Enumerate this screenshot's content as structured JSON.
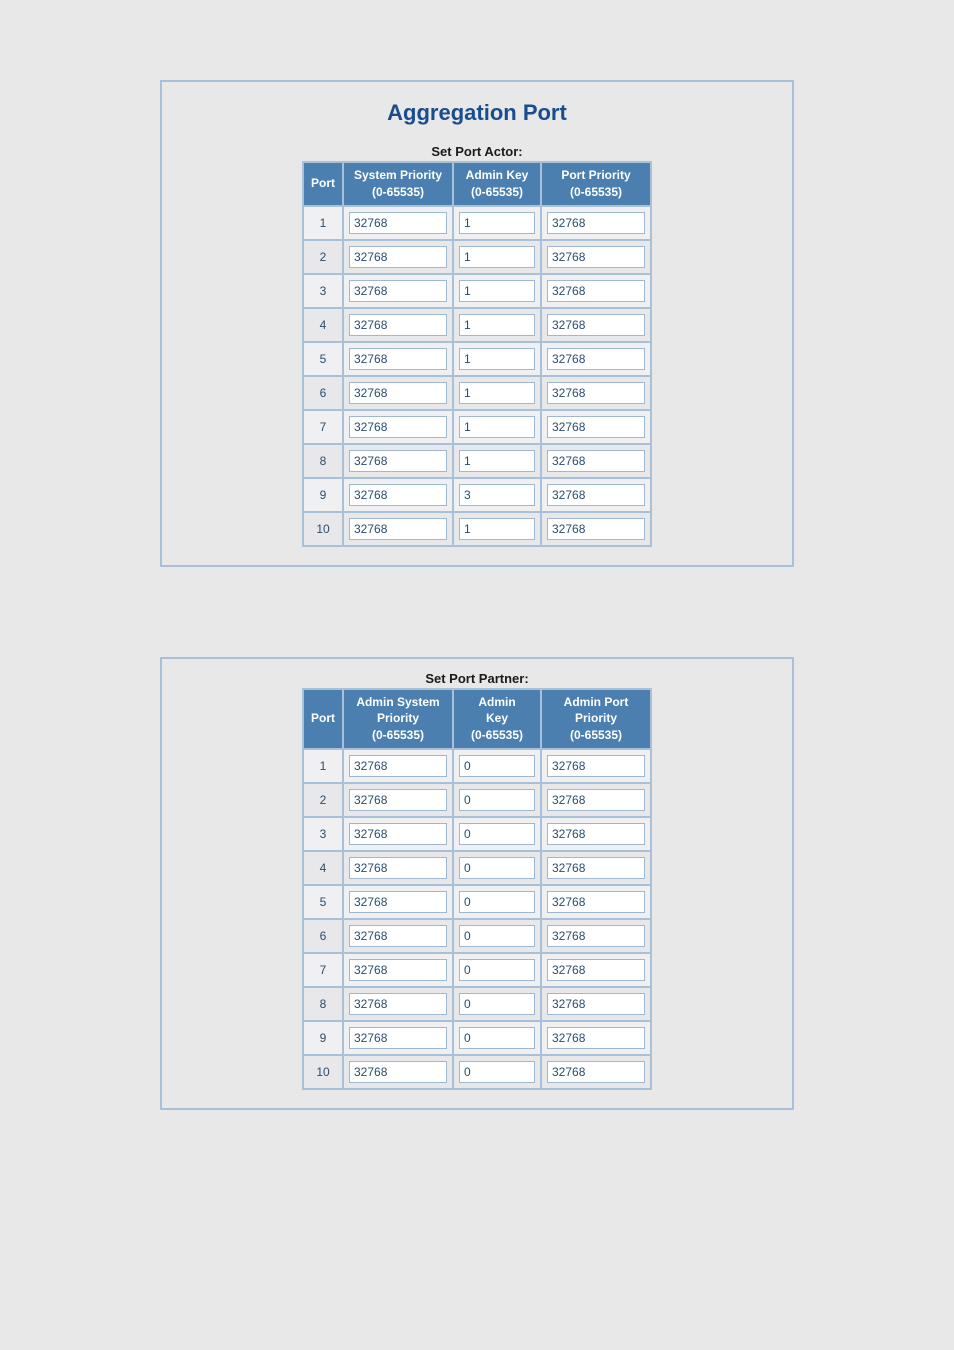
{
  "title": "Aggregation Port",
  "tables": {
    "actor": {
      "caption": "Set Port Actor:",
      "columns": {
        "port": "Port",
        "sys_priority_line1": "System Priority",
        "sys_priority_line2": "(0-65535)",
        "admin_key_line1": "Admin Key",
        "admin_key_line2": "(0-65535)",
        "port_priority_line1": "Port Priority",
        "port_priority_line2": "(0-65535)"
      },
      "rows": [
        {
          "port": "1",
          "sys": "32768",
          "key": "1",
          "pri": "32768"
        },
        {
          "port": "2",
          "sys": "32768",
          "key": "1",
          "pri": "32768"
        },
        {
          "port": "3",
          "sys": "32768",
          "key": "1",
          "pri": "32768"
        },
        {
          "port": "4",
          "sys": "32768",
          "key": "1",
          "pri": "32768"
        },
        {
          "port": "5",
          "sys": "32768",
          "key": "1",
          "pri": "32768"
        },
        {
          "port": "6",
          "sys": "32768",
          "key": "1",
          "pri": "32768"
        },
        {
          "port": "7",
          "sys": "32768",
          "key": "1",
          "pri": "32768"
        },
        {
          "port": "8",
          "sys": "32768",
          "key": "1",
          "pri": "32768"
        },
        {
          "port": "9",
          "sys": "32768",
          "key": "3",
          "pri": "32768"
        },
        {
          "port": "10",
          "sys": "32768",
          "key": "1",
          "pri": "32768"
        }
      ]
    },
    "partner": {
      "caption": "Set Port Partner:",
      "columns": {
        "port": "Port",
        "sys_priority_line1": "Admin System",
        "sys_priority_line2": "Priority",
        "sys_priority_line3": "(0-65535)",
        "admin_key_line1": "Admin",
        "admin_key_line2": "Key",
        "admin_key_line3": "(0-65535)",
        "port_priority_line1": "Admin Port",
        "port_priority_line2": "Priority",
        "port_priority_line3": "(0-65535)"
      },
      "rows": [
        {
          "port": "1",
          "sys": "32768",
          "key": "0",
          "pri": "32768"
        },
        {
          "port": "2",
          "sys": "32768",
          "key": "0",
          "pri": "32768"
        },
        {
          "port": "3",
          "sys": "32768",
          "key": "0",
          "pri": "32768"
        },
        {
          "port": "4",
          "sys": "32768",
          "key": "0",
          "pri": "32768"
        },
        {
          "port": "5",
          "sys": "32768",
          "key": "0",
          "pri": "32768"
        },
        {
          "port": "6",
          "sys": "32768",
          "key": "0",
          "pri": "32768"
        },
        {
          "port": "7",
          "sys": "32768",
          "key": "0",
          "pri": "32768"
        },
        {
          "port": "8",
          "sys": "32768",
          "key": "0",
          "pri": "32768"
        },
        {
          "port": "9",
          "sys": "32768",
          "key": "0",
          "pri": "32768"
        },
        {
          "port": "10",
          "sys": "32768",
          "key": "0",
          "pri": "32768"
        }
      ]
    }
  }
}
